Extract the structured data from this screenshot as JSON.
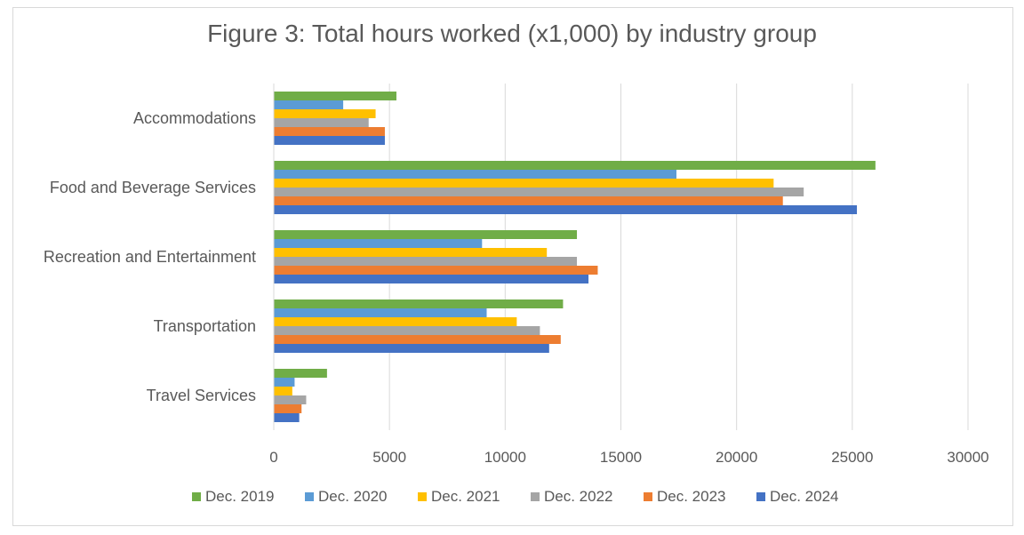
{
  "chart_data": {
    "type": "bar",
    "orientation": "horizontal",
    "title": "Figure 3: Total hours worked (x1,000) by industry group",
    "xlabel": "",
    "ylabel": "",
    "categories": [
      "Accommodations",
      "Food and Beverage Services",
      "Recreation and Entertainment",
      "Transportation",
      "Travel Services"
    ],
    "xlim": [
      0,
      30000
    ],
    "xticks": [
      0,
      5000,
      10000,
      15000,
      20000,
      25000,
      30000
    ],
    "grid": true,
    "legend_position": "bottom",
    "series": [
      {
        "name": "Dec. 2019",
        "color": "#70ad47",
        "values": [
          5300,
          26000,
          13100,
          12500,
          2300
        ]
      },
      {
        "name": "Dec. 2020",
        "color": "#5b9bd5",
        "values": [
          3000,
          17400,
          9000,
          9200,
          900
        ]
      },
      {
        "name": "Dec. 2021",
        "color": "#ffc000",
        "values": [
          4400,
          21600,
          11800,
          10500,
          800
        ]
      },
      {
        "name": "Dec. 2022",
        "color": "#a5a5a5",
        "values": [
          4100,
          22900,
          13100,
          11500,
          1400
        ]
      },
      {
        "name": "Dec. 2023",
        "color": "#ed7d31",
        "values": [
          4800,
          22000,
          14000,
          12400,
          1200
        ]
      },
      {
        "name": "Dec. 2024",
        "color": "#4472c4",
        "values": [
          4800,
          25200,
          13600,
          11900,
          1100
        ]
      }
    ]
  }
}
